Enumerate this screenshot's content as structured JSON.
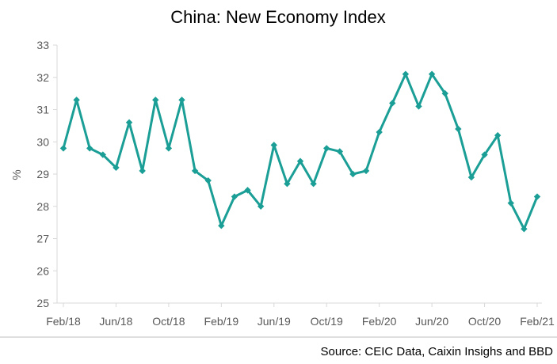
{
  "chart_data": {
    "type": "line",
    "title": "China: New Economy Index",
    "ylabel": "%",
    "xlabel": "",
    "ylim": [
      25,
      33
    ],
    "yticks": [
      "25",
      "26",
      "27",
      "28",
      "29",
      "30",
      "31",
      "32",
      "33"
    ],
    "xtick_labels": [
      {
        "index": 0,
        "label": "Feb/18"
      },
      {
        "index": 4,
        "label": "Jun/18"
      },
      {
        "index": 8,
        "label": "Oct/18"
      },
      {
        "index": 12,
        "label": "Feb/19"
      },
      {
        "index": 16,
        "label": "Jun/19"
      },
      {
        "index": 20,
        "label": "Oct/19"
      },
      {
        "index": 24,
        "label": "Feb/20"
      },
      {
        "index": 28,
        "label": "Jun/20"
      },
      {
        "index": 32,
        "label": "Oct/20"
      },
      {
        "index": 36,
        "label": "Feb/21"
      }
    ],
    "categories": [
      "Feb/18",
      "Mar/18",
      "Apr/18",
      "May/18",
      "Jun/18",
      "Jul/18",
      "Aug/18",
      "Sep/18",
      "Oct/18",
      "Nov/18",
      "Dec/18",
      "Jan/19",
      "Feb/19",
      "Mar/19",
      "Apr/19",
      "May/19",
      "Jun/19",
      "Jul/19",
      "Aug/19",
      "Sep/19",
      "Oct/19",
      "Nov/19",
      "Dec/19",
      "Jan/20",
      "Feb/20",
      "Mar/20",
      "Apr/20",
      "May/20",
      "Jun/20",
      "Jul/20",
      "Aug/20",
      "Sep/20",
      "Oct/20",
      "Nov/20",
      "Dec/20",
      "Jan/21",
      "Feb/21"
    ],
    "series": [
      {
        "values": [
          29.8,
          31.3,
          29.8,
          29.6,
          29.2,
          30.6,
          29.1,
          31.3,
          29.8,
          31.3,
          29.1,
          28.8,
          27.4,
          28.3,
          28.5,
          28.0,
          29.9,
          28.7,
          29.4,
          28.7,
          29.8,
          29.7,
          29.0,
          29.1,
          30.3,
          31.2,
          32.1,
          31.1,
          32.1,
          31.5,
          30.4,
          28.9,
          29.6,
          30.2,
          28.1,
          27.3,
          28.3
        ],
        "color": "#1a9e96"
      }
    ],
    "grid": false,
    "legend": "none"
  },
  "source": "Source: CEIC Data, Caixin Insighs and BBD"
}
